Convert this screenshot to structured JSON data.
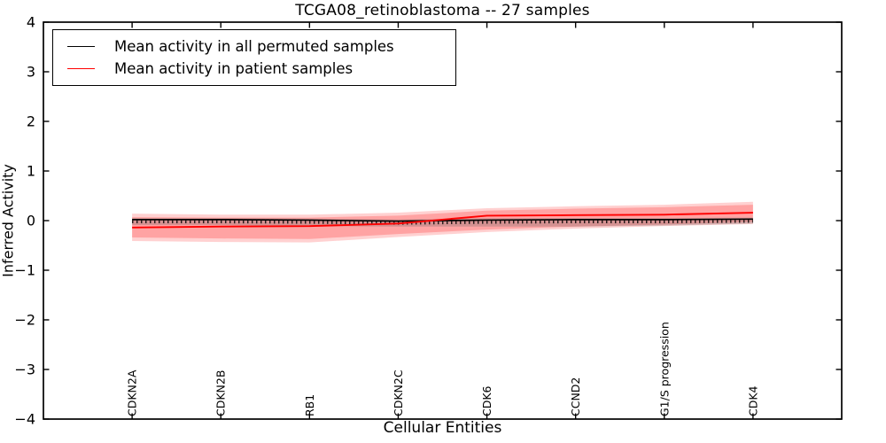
{
  "chart_data": {
    "type": "line",
    "title": "TCGA08_retinoblastoma -- 27 samples",
    "xlabel": "Cellular Entities",
    "ylabel": "Inferred Activity",
    "ylim": [
      -4,
      4
    ],
    "xlim": [
      0,
      9
    ],
    "grid": false,
    "legend_position": "upper left",
    "ytick_values": [
      4,
      3,
      2,
      1,
      0,
      -1,
      -2,
      -3,
      -4
    ],
    "ytick_labels": [
      "4",
      "3",
      "2",
      "1",
      "0",
      "−1",
      "−2",
      "−3",
      "−4"
    ],
    "categories": [
      "CDKN2A",
      "CDKN2B",
      "RB1",
      "CDKN2C",
      "CDK6",
      "CCND2",
      "G1/S progression",
      "CDK4"
    ],
    "series": [
      {
        "name": "Mean activity in all permuted samples",
        "color": "#000000",
        "marker": "dense-plus-ticks",
        "values": [
          0.02,
          0.02,
          0.01,
          -0.01,
          0.01,
          0.02,
          0.02,
          0.03
        ]
      },
      {
        "name": "Mean activity in patient samples",
        "color": "#ff0000",
        "marker": "none",
        "values": [
          -0.14,
          -0.12,
          -0.11,
          -0.06,
          0.1,
          0.11,
          0.12,
          0.16
        ]
      }
    ],
    "bands": [
      {
        "name": "patient-spread-outer",
        "fill": "rgba(255,45,45,0.22)",
        "upper": [
          0.14,
          0.12,
          0.12,
          0.16,
          0.25,
          0.29,
          0.32,
          0.38
        ],
        "lower": [
          -0.41,
          -0.43,
          -0.44,
          -0.33,
          -0.23,
          -0.16,
          -0.11,
          -0.07
        ]
      },
      {
        "name": "patient-spread-inner",
        "fill": "rgba(255,30,30,0.26)",
        "upper": [
          0.07,
          0.06,
          0.06,
          0.1,
          0.2,
          0.24,
          0.27,
          0.32
        ],
        "lower": [
          -0.34,
          -0.36,
          -0.37,
          -0.27,
          -0.18,
          -0.12,
          -0.08,
          -0.03
        ]
      },
      {
        "name": "permuted-spread",
        "fill": "rgba(100,100,100,0.28)",
        "upper": [
          0.05,
          0.05,
          0.04,
          0.02,
          0.05,
          0.05,
          0.05,
          0.06
        ],
        "lower": [
          -0.09,
          -0.09,
          -0.11,
          -0.12,
          -0.12,
          -0.12,
          -0.1,
          -0.06
        ]
      }
    ]
  }
}
